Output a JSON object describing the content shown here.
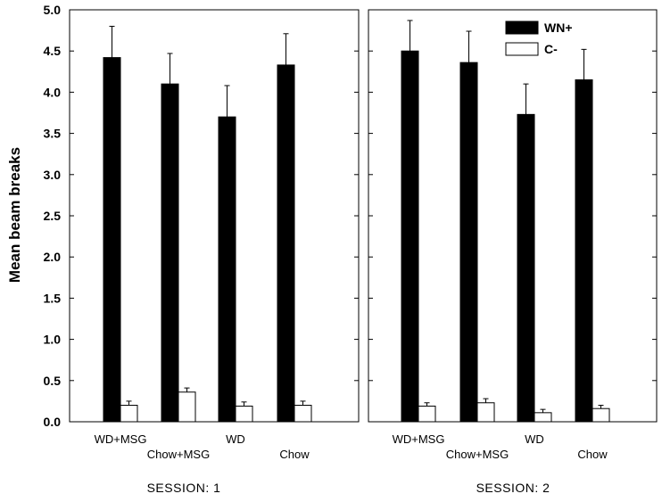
{
  "chart_data": {
    "type": "bar",
    "ylabel": "Mean beam breaks",
    "ylim": [
      0,
      5
    ],
    "yticks": [
      "0.0",
      "0.5",
      "1.0",
      "1.5",
      "2.0",
      "2.5",
      "3.0",
      "3.5",
      "4.0",
      "4.5",
      "5.0"
    ],
    "legend": {
      "placement": "top-right of second panel",
      "entries": [
        {
          "name": "WN+",
          "color": "#000000"
        },
        {
          "name": "C-",
          "color": "#ffffff"
        }
      ]
    },
    "panels": [
      {
        "title": "SESSION: 1",
        "categories": [
          "WD+MSG",
          "Chow+MSG",
          "WD",
          "Chow"
        ],
        "series": [
          {
            "name": "WN+",
            "values": [
              4.42,
              4.1,
              3.7,
              4.33
            ],
            "errors": [
              0.38,
              0.37,
              0.38,
              0.38
            ]
          },
          {
            "name": "C-",
            "values": [
              0.2,
              0.36,
              0.19,
              0.2
            ],
            "errors": [
              0.05,
              0.05,
              0.05,
              0.05
            ]
          }
        ]
      },
      {
        "title": "SESSION: 2",
        "categories": [
          "WD+MSG",
          "Chow+MSG",
          "WD",
          "Chow"
        ],
        "series": [
          {
            "name": "WN+",
            "values": [
              4.5,
              4.36,
              3.73,
              4.15
            ],
            "errors": [
              0.37,
              0.38,
              0.37,
              0.37
            ]
          },
          {
            "name": "C-",
            "values": [
              0.19,
              0.23,
              0.11,
              0.16
            ],
            "errors": [
              0.04,
              0.05,
              0.04,
              0.04
            ]
          }
        ]
      }
    ]
  }
}
